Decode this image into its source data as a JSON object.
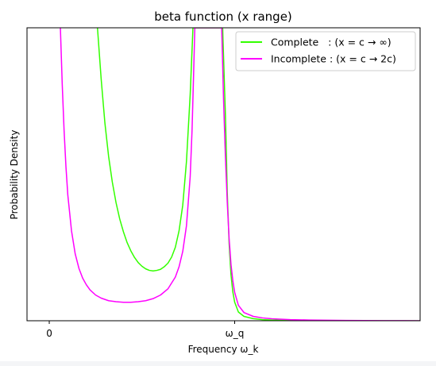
{
  "chart_data": {
    "type": "line",
    "title": "beta function (x range)",
    "xlabel": "Frequency ω_k",
    "ylabel": "Probability Density",
    "xlim": [
      -0.12,
      2.0
    ],
    "ylim": [
      0,
      5.7
    ],
    "x_ticks": [
      {
        "value": 0.0,
        "label": "0"
      },
      {
        "value": 1.0,
        "label": "ω_q"
      }
    ],
    "y_ticks": [],
    "grid": false,
    "legend_position": "top-right",
    "series": [
      {
        "name": "Complete   : (x = c → ∞)",
        "color": "#33ff00",
        "points": [
          [
            0.26,
            5.7
          ],
          [
            0.28,
            4.7
          ],
          [
            0.3,
            3.85
          ],
          [
            0.32,
            3.2
          ],
          [
            0.34,
            2.7
          ],
          [
            0.36,
            2.3
          ],
          [
            0.38,
            1.98
          ],
          [
            0.4,
            1.73
          ],
          [
            0.42,
            1.52
          ],
          [
            0.44,
            1.36
          ],
          [
            0.46,
            1.23
          ],
          [
            0.48,
            1.13
          ],
          [
            0.5,
            1.06
          ],
          [
            0.52,
            1.01
          ],
          [
            0.54,
            0.98
          ],
          [
            0.56,
            0.97
          ],
          [
            0.58,
            0.98
          ],
          [
            0.6,
            1.0
          ],
          [
            0.62,
            1.05
          ],
          [
            0.64,
            1.12
          ],
          [
            0.66,
            1.24
          ],
          [
            0.68,
            1.43
          ],
          [
            0.7,
            1.75
          ],
          [
            0.72,
            2.25
          ],
          [
            0.74,
            3.1
          ],
          [
            0.76,
            4.4
          ],
          [
            0.775,
            5.7
          ],
          [
            0.935,
            5.7
          ],
          [
            0.95,
            4.0
          ],
          [
            0.96,
            2.5
          ],
          [
            0.97,
            1.5
          ],
          [
            0.98,
            0.9
          ],
          [
            0.99,
            0.56
          ],
          [
            1.0,
            0.36
          ],
          [
            1.02,
            0.17
          ],
          [
            1.05,
            0.085
          ],
          [
            1.1,
            0.04
          ],
          [
            1.15,
            0.022
          ],
          [
            1.2,
            0.013
          ],
          [
            1.3,
            0.006
          ],
          [
            1.4,
            0.003
          ],
          [
            1.5,
            0.0015
          ],
          [
            1.6,
            0.0008
          ],
          [
            1.7,
            0.0004
          ],
          [
            1.8,
            0.0002
          ],
          [
            1.9,
            0.0001
          ],
          [
            2.0,
            0.0
          ]
        ]
      },
      {
        "name": "Incomplete : (x = c → 2c)",
        "color": "#ff00ff",
        "points": [
          [
            0.06,
            5.7
          ],
          [
            0.07,
            4.6
          ],
          [
            0.08,
            3.7
          ],
          [
            0.09,
            3.0
          ],
          [
            0.1,
            2.45
          ],
          [
            0.12,
            1.75
          ],
          [
            0.14,
            1.3
          ],
          [
            0.16,
            1.02
          ],
          [
            0.18,
            0.83
          ],
          [
            0.2,
            0.7
          ],
          [
            0.22,
            0.6
          ],
          [
            0.25,
            0.5
          ],
          [
            0.28,
            0.44
          ],
          [
            0.32,
            0.39
          ],
          [
            0.36,
            0.37
          ],
          [
            0.4,
            0.36
          ],
          [
            0.44,
            0.36
          ],
          [
            0.48,
            0.37
          ],
          [
            0.52,
            0.39
          ],
          [
            0.56,
            0.43
          ],
          [
            0.6,
            0.5
          ],
          [
            0.64,
            0.62
          ],
          [
            0.68,
            0.85
          ],
          [
            0.7,
            1.05
          ],
          [
            0.72,
            1.35
          ],
          [
            0.74,
            1.85
          ],
          [
            0.76,
            2.8
          ],
          [
            0.77,
            3.7
          ],
          [
            0.78,
            5.0
          ],
          [
            0.785,
            5.7
          ],
          [
            0.93,
            5.7
          ],
          [
            0.94,
            4.3
          ],
          [
            0.95,
            3.2
          ],
          [
            0.96,
            2.3
          ],
          [
            0.97,
            1.6
          ],
          [
            0.98,
            1.1
          ],
          [
            0.99,
            0.78
          ],
          [
            1.0,
            0.55
          ],
          [
            1.02,
            0.3
          ],
          [
            1.05,
            0.16
          ],
          [
            1.1,
            0.085
          ],
          [
            1.15,
            0.055
          ],
          [
            1.2,
            0.038
          ],
          [
            1.3,
            0.022
          ],
          [
            1.4,
            0.014
          ],
          [
            1.5,
            0.009
          ],
          [
            1.6,
            0.006
          ],
          [
            1.7,
            0.004
          ],
          [
            1.8,
            0.0025
          ],
          [
            1.9,
            0.0015
          ],
          [
            2.0,
            0.001
          ]
        ]
      }
    ]
  },
  "colors": {
    "background": "#ffffff",
    "axes": "#000000",
    "legend_border": "#cccccc"
  }
}
